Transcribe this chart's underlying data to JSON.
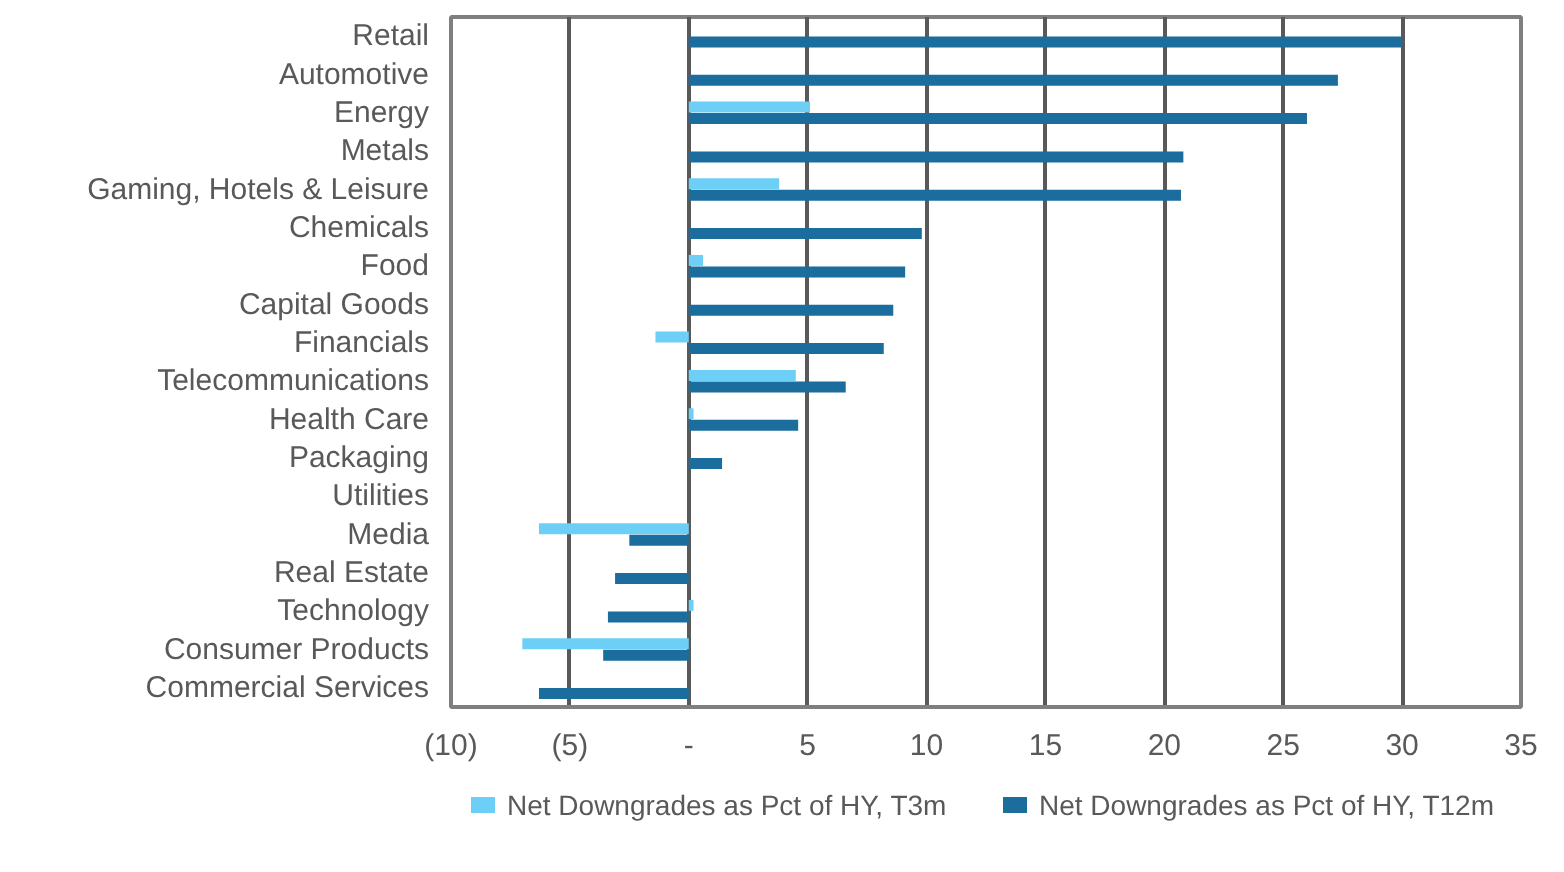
{
  "chart_data": {
    "type": "bar",
    "orientation": "horizontal",
    "categories": [
      "Retail",
      "Automotive",
      "Energy",
      "Metals",
      "Gaming, Hotels & Leisure",
      "Chemicals",
      "Food",
      "Capital Goods",
      "Financials",
      "Telecommunications",
      "Health Care",
      "Packaging",
      "Utilities",
      "Media",
      "Real Estate",
      "Technology",
      "Consumer Products",
      "Commercial Services"
    ],
    "series": [
      {
        "name": "Net Downgrades as Pct of HY, T3m",
        "color": "#6dcff6",
        "values": [
          0,
          0,
          5.1,
          0,
          3.8,
          0,
          0.6,
          0,
          -1.4,
          4.5,
          0.2,
          0,
          0,
          -6.3,
          0,
          0.2,
          -7.0,
          0
        ]
      },
      {
        "name": "Net Downgrades as Pct of HY, T12m",
        "color": "#1a6d9c",
        "values": [
          30.0,
          27.3,
          26.0,
          20.8,
          20.7,
          9.8,
          9.1,
          8.6,
          8.2,
          6.6,
          4.6,
          1.4,
          0,
          -2.5,
          -3.1,
          -3.4,
          -3.6,
          -6.3
        ]
      }
    ],
    "xlim": [
      -10,
      35
    ],
    "xticks": [
      {
        "value": -10,
        "label": "(10)"
      },
      {
        "value": -5,
        "label": "(5)"
      },
      {
        "value": 0,
        "label": "-"
      },
      5,
      10,
      15,
      20,
      25,
      30,
      35
    ],
    "grid": "x",
    "legend": "bottom"
  }
}
